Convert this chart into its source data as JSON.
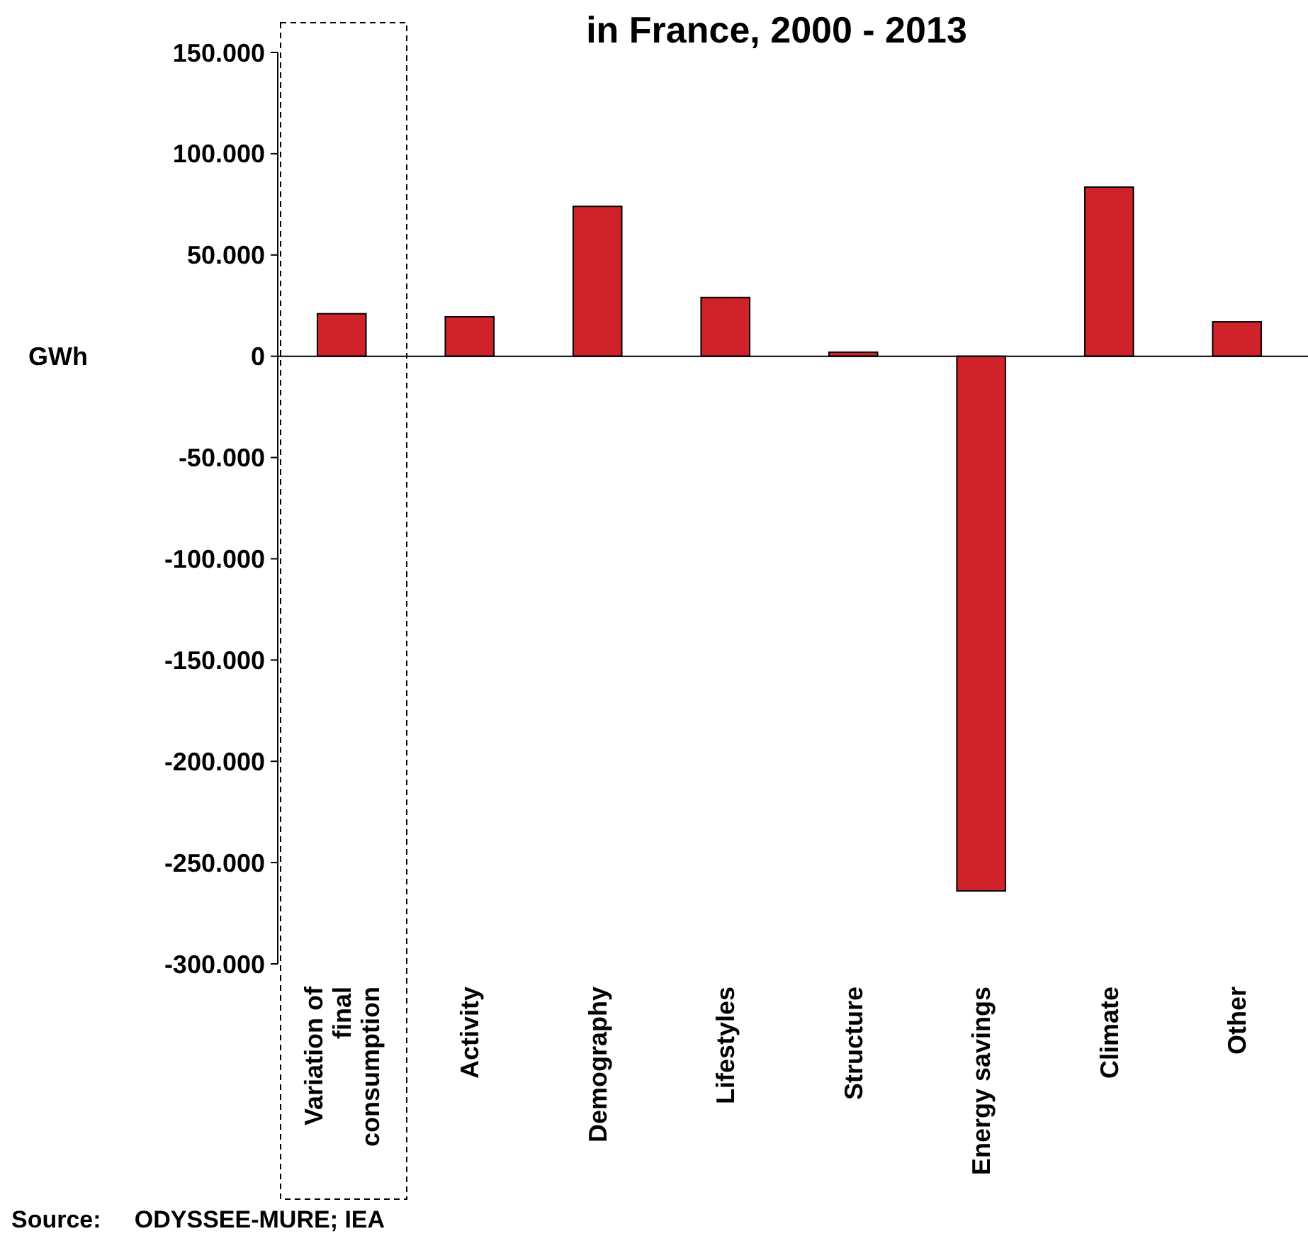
{
  "chart_data": {
    "type": "bar",
    "title": "in France, 2000 - 2013",
    "ylabel": "GWh",
    "categories": [
      "Variation of final consumption",
      "Activity",
      "Demography",
      "Lifestyles",
      "Structure",
      "Energy savings",
      "Climate",
      "Other"
    ],
    "values": [
      21000,
      19500,
      74000,
      29000,
      2000,
      -264000,
      83500,
      17000
    ],
    "color": "#d0222a",
    "ylim": [
      -300000,
      150000
    ],
    "yticks": [
      {
        "value": -300000,
        "label": "-300.000"
      },
      {
        "value": -250000,
        "label": "-250.000"
      },
      {
        "value": -200000,
        "label": "-200.000"
      },
      {
        "value": -150000,
        "label": "-150.000"
      },
      {
        "value": -100000,
        "label": "-100.000"
      },
      {
        "value": -50000,
        "label": "-50.000"
      },
      0,
      {
        "value": 50000,
        "label": "50.000"
      },
      {
        "value": 100000,
        "label": "100.000"
      },
      {
        "value": 150000,
        "label": "150.000"
      }
    ],
    "annotations": [
      "Source:     ODYSSEE-MURE; IEA"
    ]
  }
}
